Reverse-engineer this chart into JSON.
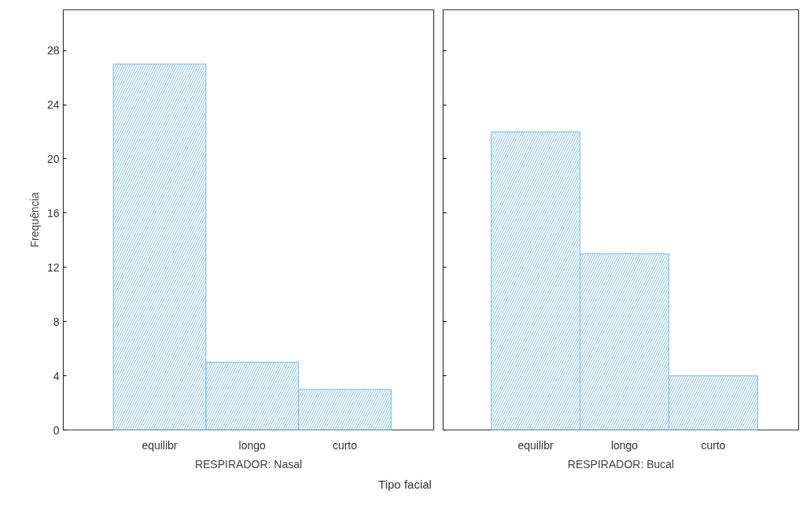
{
  "chart_data": [
    {
      "type": "bar",
      "categories": [
        "equilibr",
        "longo",
        "curto"
      ],
      "values": [
        27,
        5,
        3
      ],
      "color": "#8cc4ec",
      "xlabel": "RESPIRADOR: Nasal",
      "ylabel": "Frequência",
      "ylim": [
        0,
        31
      ],
      "yticks": [
        0,
        4,
        8,
        12,
        16,
        20,
        24,
        28
      ],
      "annotations": [
        "Tipo facial"
      ]
    },
    {
      "type": "bar",
      "categories": [
        "equilibr",
        "longo",
        "curto"
      ],
      "values": [
        22,
        13,
        4
      ],
      "color": "#8cc4ec",
      "xlabel": "RESPIRADOR: Bucal",
      "ylim": [
        0,
        31
      ],
      "yticks": [
        0,
        4,
        8,
        12,
        16,
        20,
        24,
        28
      ],
      "tick_labels": "x"
    }
  ]
}
